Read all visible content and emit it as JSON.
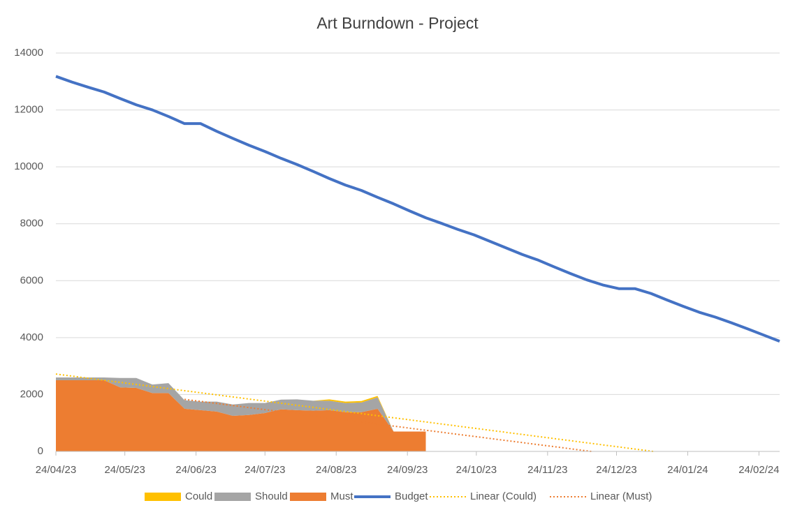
{
  "chart_data": {
    "type": "area-line",
    "title": "Art Burndown - Project",
    "x": [
      "2023-04-24",
      "2023-05-01",
      "2023-05-08",
      "2023-05-15",
      "2023-05-22",
      "2023-05-29",
      "2023-06-05",
      "2023-06-12",
      "2023-06-19",
      "2023-06-26",
      "2023-07-03",
      "2023-07-10",
      "2023-07-17",
      "2023-07-24",
      "2023-07-31",
      "2023-08-07",
      "2023-08-14",
      "2023-08-21",
      "2023-08-28",
      "2023-09-04",
      "2023-09-11",
      "2023-09-18",
      "2023-09-25",
      "2023-10-02",
      "2023-10-09",
      "2023-10-16",
      "2023-10-23",
      "2023-10-30",
      "2023-11-06",
      "2023-11-13",
      "2023-11-20",
      "2023-11-27",
      "2023-12-04",
      "2023-12-11",
      "2023-12-18",
      "2023-12-25",
      "2024-01-01",
      "2024-01-08",
      "2024-01-15",
      "2024-01-22",
      "2024-01-29",
      "2024-02-05",
      "2024-02-12",
      "2024-02-19",
      "2024-02-26",
      "2024-03-04"
    ],
    "xlim": [
      "2023-04-24",
      "2024-03-04"
    ],
    "xticks": [
      {
        "value": "2023-04-24",
        "label": "24/04/23"
      },
      {
        "value": "2023-05-24",
        "label": "24/05/23"
      },
      {
        "value": "2023-06-24",
        "label": "24/06/23"
      },
      {
        "value": "2023-07-24",
        "label": "24/07/23"
      },
      {
        "value": "2023-08-24",
        "label": "24/08/23"
      },
      {
        "value": "2023-09-24",
        "label": "24/09/23"
      },
      {
        "value": "2023-10-24",
        "label": "24/10/23"
      },
      {
        "value": "2023-11-24",
        "label": "24/11/23"
      },
      {
        "value": "2023-12-24",
        "label": "24/12/23"
      },
      {
        "value": "2024-01-24",
        "label": "24/01/24"
      },
      {
        "value": "2024-02-24",
        "label": "24/02/24"
      }
    ],
    "ylim": [
      0,
      14000
    ],
    "yticks": [
      0,
      2000,
      4000,
      6000,
      8000,
      10000,
      12000,
      14000
    ],
    "grid": true,
    "legend": "bottom",
    "series": [
      {
        "name": "Could",
        "color": "#ffc000",
        "kind": "area",
        "values": [
          0,
          0,
          0,
          0,
          0,
          0,
          0,
          0,
          0,
          0,
          0,
          0,
          0,
          0,
          0,
          0,
          0,
          50,
          50,
          50,
          50,
          0,
          0,
          0,
          null,
          null,
          null,
          null,
          null,
          null,
          null,
          null,
          null,
          null,
          null,
          null,
          null,
          null,
          null,
          null,
          null,
          null,
          null,
          null,
          null,
          null
        ]
      },
      {
        "name": "Should",
        "color": "#a5a5a5",
        "kind": "area",
        "values": [
          100,
          100,
          100,
          100,
          330,
          350,
          300,
          350,
          300,
          300,
          350,
          400,
          420,
          350,
          340,
          380,
          350,
          330,
          320,
          340,
          400,
          0,
          0,
          0,
          null,
          null,
          null,
          null,
          null,
          null,
          null,
          null,
          null,
          null,
          null,
          null,
          null,
          null,
          null,
          null,
          null,
          null,
          null,
          null,
          null,
          null
        ]
      },
      {
        "name": "Must",
        "color": "#ed7d31",
        "kind": "area",
        "values": [
          2500,
          2500,
          2500,
          2500,
          2250,
          2230,
          2050,
          2050,
          1500,
          1450,
          1400,
          1250,
          1280,
          1350,
          1480,
          1450,
          1430,
          1450,
          1380,
          1380,
          1500,
          700,
          700,
          700,
          null,
          null,
          null,
          null,
          null,
          null,
          null,
          null,
          null,
          null,
          null,
          null,
          null,
          null,
          null,
          null,
          null,
          null,
          null,
          null,
          null,
          null
        ]
      },
      {
        "name": "Budget",
        "color": "#4472c4",
        "kind": "line",
        "values": [
          13180,
          12980,
          12800,
          12630,
          12400,
          12180,
          12000,
          11770,
          11520,
          11520,
          11250,
          11000,
          10760,
          10540,
          10300,
          10080,
          9840,
          9590,
          9360,
          9170,
          8930,
          8700,
          8450,
          8210,
          8010,
          7800,
          7610,
          7380,
          7150,
          6920,
          6720,
          6480,
          6250,
          6030,
          5850,
          5720,
          5720,
          5550,
          5320,
          5100,
          4890,
          4720,
          4520,
          4310,
          4090,
          3870
        ]
      },
      {
        "name": "Linear (Could)",
        "color": "#ffc000",
        "kind": "trend",
        "x": [
          "2023-04-24",
          "2024-01-09"
        ],
        "values": [
          2720,
          0
        ]
      },
      {
        "name": "Linear (Must)",
        "color": "#ed7d31",
        "kind": "trend",
        "x": [
          "2023-06-19",
          "2023-12-13"
        ],
        "values": [
          1830,
          0
        ]
      }
    ]
  }
}
